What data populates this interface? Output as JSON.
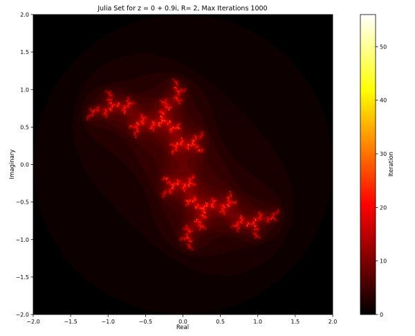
{
  "chart_data": {
    "type": "heatmap",
    "title": "Julia Set for z = 0 + 0.9i, R= 2, Max Iterations 1000",
    "xlabel": "Real",
    "ylabel": "Imaginary",
    "xlim": [
      -2.0,
      2.0
    ],
    "ylim": [
      -2.0,
      2.0
    ],
    "x_ticks": [
      -2.0,
      -1.5,
      -1.0,
      -0.5,
      0.0,
      0.5,
      1.0,
      1.5,
      2.0
    ],
    "x_tick_labels": [
      "−2.0",
      "−1.5",
      "−1.0",
      "−0.5",
      "0.0",
      "0.5",
      "1.0",
      "1.5",
      "2.0"
    ],
    "y_ticks": [
      2.0,
      1.5,
      1.0,
      0.5,
      0.0,
      -0.5,
      -1.0,
      -1.5,
      -2.0
    ],
    "y_tick_labels": [
      "2.0",
      "1.5",
      "1.0",
      "0.5",
      "0.0",
      "−0.5",
      "−1.0",
      "−1.5",
      "−2.0"
    ],
    "colormap": "hot",
    "colorbar": {
      "label": "Iteration",
      "range": [
        0,
        56
      ],
      "ticks": [
        0,
        10,
        20,
        30,
        40,
        50
      ],
      "tick_labels": [
        "0",
        "10",
        "20",
        "30",
        "40",
        "50"
      ]
    },
    "parameters": {
      "c_real": 0.0,
      "c_imag": 0.9,
      "escape_radius": 2,
      "max_iterations": 1000
    },
    "grid": false
  }
}
